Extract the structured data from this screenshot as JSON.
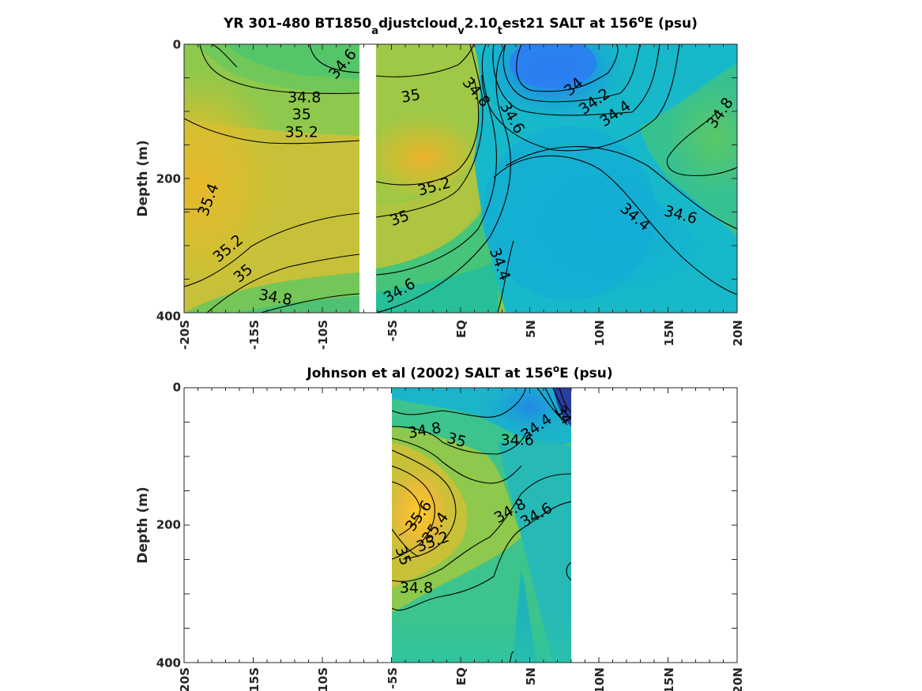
{
  "chart_data": [
    {
      "type": "heatmap",
      "title": {
        "pre": "YR 301-480 BT1850",
        "s1": "a",
        "m1": "djustcloud",
        "s2": "v",
        "m2": "2.10",
        "s3": "t",
        "m3": "est21 SALT at 156",
        "deg": "o",
        "post": "E (psu)"
      },
      "ylabel": "Depth (m)",
      "x_ticks": [
        "-20S",
        "-15S",
        "-10S",
        "-5S",
        "EQ",
        "5N",
        "10N",
        "15N",
        "20N"
      ],
      "y_ticks": [
        "0",
        "200",
        "400"
      ],
      "xlim": [
        -20,
        20
      ],
      "ylim": [
        0,
        400
      ],
      "y_reversed": true,
      "data_gap": [
        -7,
        -6
      ],
      "contour_labels": [
        {
          "text": "34.6",
          "x": -8.5,
          "y": 30,
          "rot": -50
        },
        {
          "text": "34.8",
          "x": -11.3,
          "y": 80,
          "rot": 0
        },
        {
          "text": "35",
          "x": -11.5,
          "y": 105,
          "rot": 0
        },
        {
          "text": "35.2",
          "x": -11.5,
          "y": 132,
          "rot": 0
        },
        {
          "text": "35.4",
          "x": -18.2,
          "y": 232,
          "rot": -70
        },
        {
          "text": "35.2",
          "x": -16.8,
          "y": 305,
          "rot": -40
        },
        {
          "text": "35",
          "x": -15.7,
          "y": 342,
          "rot": -40
        },
        {
          "text": "34.8",
          "x": -13.4,
          "y": 378,
          "rot": 10
        },
        {
          "text": "35",
          "x": -3.6,
          "y": 78,
          "rot": -10
        },
        {
          "text": "35.2",
          "x": -1.9,
          "y": 213,
          "rot": -15
        },
        {
          "text": "35",
          "x": -4.4,
          "y": 260,
          "rot": -20
        },
        {
          "text": "34.6",
          "x": -4.4,
          "y": 368,
          "rot": -30
        },
        {
          "text": "34.8",
          "x": 1.1,
          "y": 72,
          "rot": 50
        },
        {
          "text": "34.6",
          "x": 3.7,
          "y": 110,
          "rot": 60
        },
        {
          "text": "34.4",
          "x": 2.8,
          "y": 328,
          "rot": 70
        },
        {
          "text": "34",
          "x": 8.2,
          "y": 64,
          "rot": -40
        },
        {
          "text": "34.2",
          "x": 9.7,
          "y": 86,
          "rot": -35
        },
        {
          "text": "34.4",
          "x": 11.2,
          "y": 104,
          "rot": -35
        },
        {
          "text": "34.8",
          "x": 18.8,
          "y": 103,
          "rot": -55
        },
        {
          "text": "34.4",
          "x": 12.6,
          "y": 258,
          "rot": 40
        },
        {
          "text": "34.6",
          "x": 15.9,
          "y": 255,
          "rot": 15
        }
      ]
    },
    {
      "type": "heatmap",
      "title": {
        "pre": "Johnson et al (2002) SALT at 156",
        "deg": "o",
        "post": "E (psu)"
      },
      "ylabel": "Depth (m)",
      "x_ticks": [
        "-20S",
        "-15S",
        "-10S",
        "-5S",
        "EQ",
        "5N",
        "10N",
        "15N",
        "20N"
      ],
      "y_ticks": [
        "0",
        "200",
        "400"
      ],
      "xlim": [
        -20,
        20
      ],
      "ylim": [
        0,
        400
      ],
      "y_reversed": true,
      "data_extent": [
        -5,
        8
      ],
      "contour_labels": [
        {
          "text": "34",
          "x": 7.4,
          "y": 40,
          "rot": 60
        },
        {
          "text": "34.4",
          "x": 5.5,
          "y": 58,
          "rot": -35
        },
        {
          "text": "34.8",
          "x": -2.6,
          "y": 63,
          "rot": -10
        },
        {
          "text": "35",
          "x": -0.3,
          "y": 77,
          "rot": 15
        },
        {
          "text": "34.6",
          "x": 4.1,
          "y": 77,
          "rot": 0
        },
        {
          "text": "35.6",
          "x": -3.0,
          "y": 187,
          "rot": -55
        },
        {
          "text": "35.4",
          "x": -1.8,
          "y": 204,
          "rot": -55
        },
        {
          "text": "35.2",
          "x": -2.0,
          "y": 225,
          "rot": -20
        },
        {
          "text": "34.8",
          "x": 3.6,
          "y": 180,
          "rot": -30
        },
        {
          "text": "34.6",
          "x": 5.5,
          "y": 186,
          "rot": -30
        },
        {
          "text": "35",
          "x": -4.2,
          "y": 245,
          "rot": 70
        },
        {
          "text": "34.8",
          "x": -3.2,
          "y": 292,
          "rot": 0
        }
      ]
    }
  ]
}
